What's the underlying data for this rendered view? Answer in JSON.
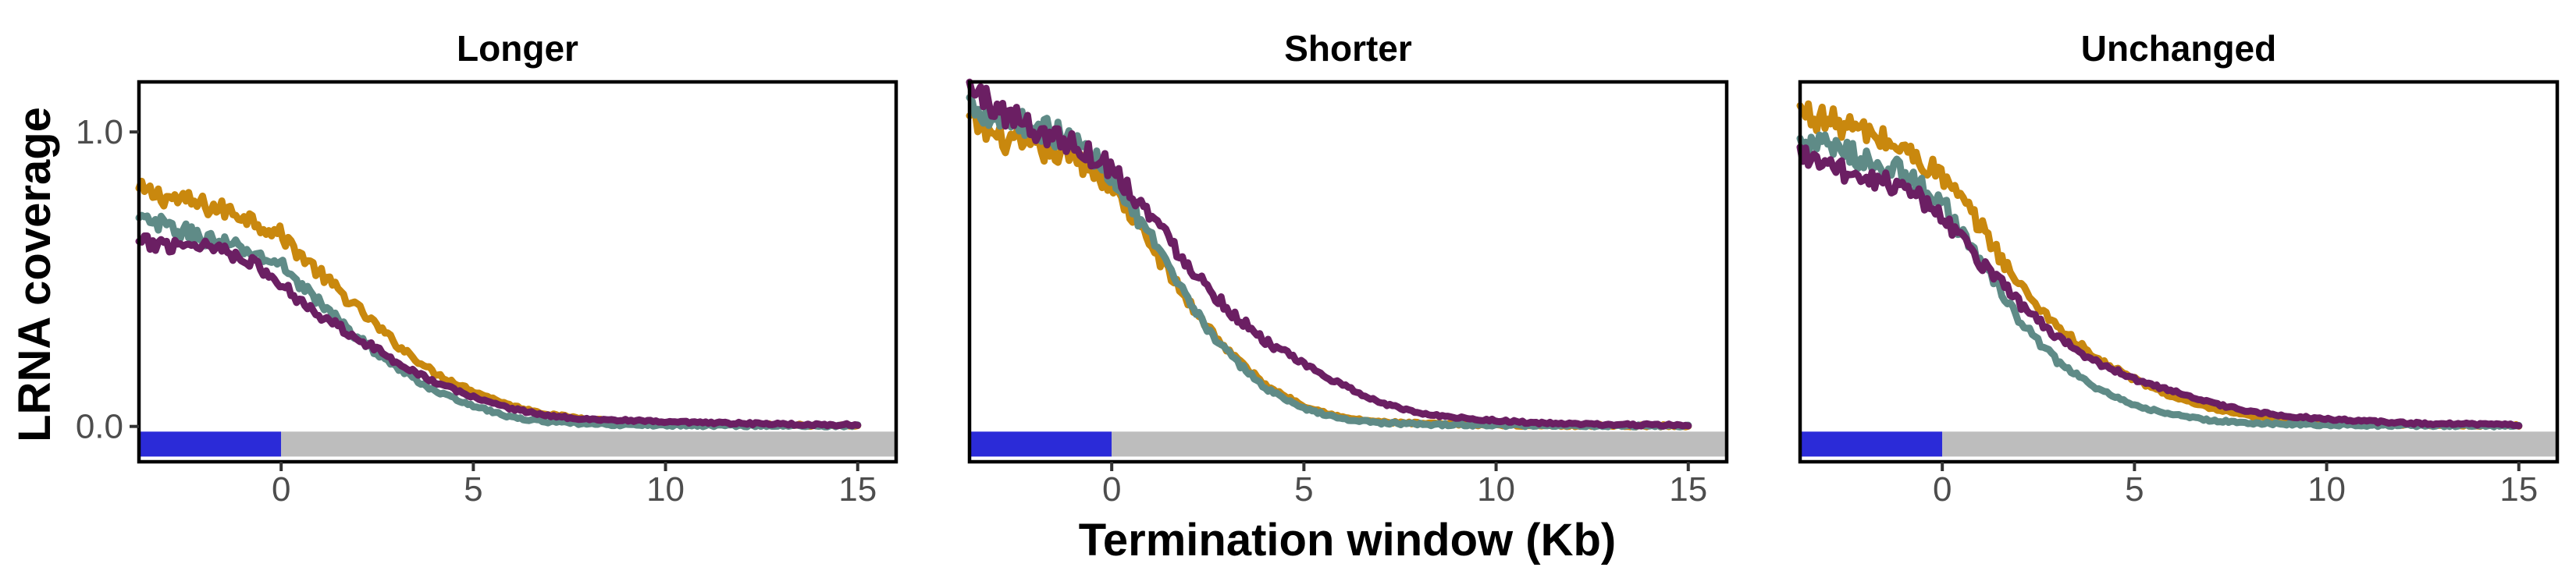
{
  "chart_data": {
    "type": "line",
    "xlabel": "Termination window (Kb)",
    "ylabel": "LRNA coverage",
    "xlim": [
      -3.7,
      16
    ],
    "ylim": [
      -0.12,
      1.17
    ],
    "x_ticks": [
      0,
      5,
      10,
      15
    ],
    "x_tick_labels": [
      "0",
      "5",
      "10",
      "15"
    ],
    "y_ticks": [
      0,
      1
    ],
    "y_tick_labels": [
      "0.0",
      "1.0"
    ],
    "grid": false,
    "legend": "none",
    "x": [
      -3.7,
      -3,
      -2,
      -1,
      0,
      1,
      2,
      3,
      4,
      5,
      6,
      7,
      8,
      9,
      10,
      11,
      12,
      13,
      14,
      15
    ],
    "region_bar": {
      "y": -0.06,
      "segments": [
        {
          "from": -3.7,
          "to": 0,
          "color": "#2b2bd8"
        },
        {
          "from": 0,
          "to": 16,
          "color": "#bdbdbd"
        }
      ]
    },
    "series_colors": [
      "#c9880e",
      "#5f8b87",
      "#6b1f63"
    ],
    "panels": [
      {
        "title": "Longer",
        "series": [
          {
            "color": "#c9880e",
            "values": [
              0.8,
              0.78,
              0.75,
              0.72,
              0.65,
              0.52,
              0.4,
              0.28,
              0.18,
              0.12,
              0.07,
              0.04,
              0.025,
              0.015,
              0.01,
              0.008,
              0.006,
              0.005,
              0.004,
              0.003
            ]
          },
          {
            "color": "#5f8b87",
            "values": [
              0.7,
              0.68,
              0.64,
              0.6,
              0.55,
              0.42,
              0.3,
              0.2,
              0.12,
              0.07,
              0.03,
              0.015,
              0.008,
              0.005,
              0.004,
              0.003,
              0.003,
              0.002,
              0.002,
              0.002
            ]
          },
          {
            "color": "#6b1f63",
            "values": [
              0.62,
              0.62,
              0.62,
              0.58,
              0.48,
              0.38,
              0.3,
              0.22,
              0.15,
              0.1,
              0.06,
              0.035,
              0.025,
              0.02,
              0.015,
              0.012,
              0.01,
              0.008,
              0.006,
              0.005
            ]
          }
        ]
      },
      {
        "title": "Shorter",
        "series": [
          {
            "color": "#c9880e",
            "values": [
              1.04,
              0.98,
              0.94,
              0.92,
              0.82,
              0.62,
              0.42,
              0.26,
              0.14,
              0.07,
              0.03,
              0.015,
              0.01,
              0.007,
              0.005,
              0.004,
              0.003,
              0.003,
              0.002,
              0.002
            ]
          },
          {
            "color": "#5f8b87",
            "values": [
              1.1,
              1.05,
              1.02,
              0.97,
              0.86,
              0.64,
              0.42,
              0.25,
              0.13,
              0.06,
              0.025,
              0.012,
              0.007,
              0.005,
              0.004,
              0.003,
              0.003,
              0.002,
              0.002,
              0.002
            ]
          },
          {
            "color": "#6b1f63",
            "values": [
              1.15,
              1.08,
              1.01,
              0.96,
              0.88,
              0.72,
              0.55,
              0.4,
              0.29,
              0.21,
              0.14,
              0.08,
              0.045,
              0.03,
              0.02,
              0.012,
              0.008,
              0.006,
              0.005,
              0.004
            ]
          }
        ]
      },
      {
        "title": "Unchanged",
        "series": [
          {
            "color": "#c9880e",
            "values": [
              1.07,
              1.04,
              1.0,
              0.94,
              0.85,
              0.68,
              0.48,
              0.34,
              0.23,
              0.16,
              0.1,
              0.06,
              0.035,
              0.02,
              0.015,
              0.01,
              0.007,
              0.005,
              0.004,
              0.003
            ]
          },
          {
            "color": "#5f8b87",
            "values": [
              0.96,
              0.95,
              0.91,
              0.86,
              0.76,
              0.56,
              0.36,
              0.22,
              0.13,
              0.07,
              0.04,
              0.02,
              0.012,
              0.008,
              0.005,
              0.004,
              0.003,
              0.003,
              0.002,
              0.002
            ]
          },
          {
            "color": "#6b1f63",
            "values": [
              0.93,
              0.88,
              0.85,
              0.82,
              0.72,
              0.56,
              0.42,
              0.3,
              0.22,
              0.16,
              0.12,
              0.08,
              0.05,
              0.035,
              0.025,
              0.018,
              0.012,
              0.009,
              0.007,
              0.005
            ]
          }
        ]
      }
    ]
  }
}
